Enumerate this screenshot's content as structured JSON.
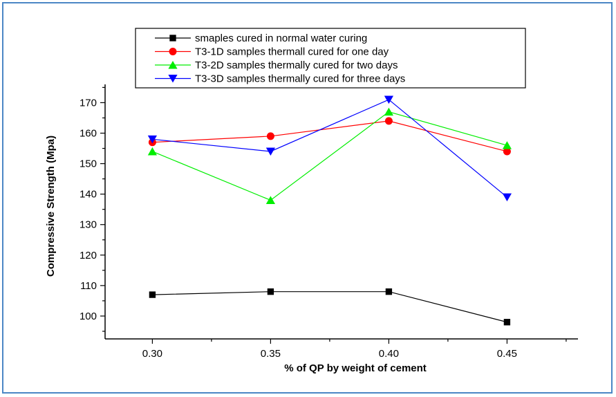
{
  "chart_data": {
    "type": "line",
    "title": "",
    "xlabel": "% of QP by weight of cement",
    "ylabel": "Compressive Strength (Mpa)",
    "x": [
      0.3,
      0.35,
      0.4,
      0.45
    ],
    "x_tick_labels": [
      "0.30",
      "0.35",
      "0.40",
      "0.45"
    ],
    "xlim": [
      0.28,
      0.48
    ],
    "ylim": [
      92.5,
      176
    ],
    "y_ticks": [
      100,
      110,
      120,
      130,
      140,
      150,
      160,
      170
    ],
    "y_tick_labels": [
      "100",
      "110",
      "120",
      "130",
      "140",
      "150",
      "160",
      "170"
    ],
    "grid": false,
    "legend_position": "top",
    "series": [
      {
        "name": "smaples cured in normal water curing",
        "values": [
          107,
          108,
          108,
          98
        ],
        "color": "#000000",
        "marker": "square"
      },
      {
        "name": "T3-1D samples thermall cured for one day",
        "values": [
          157,
          159,
          164,
          154
        ],
        "color": "#ff0000",
        "marker": "circle"
      },
      {
        "name": "T3-2D samples thermally cured for two days",
        "values": [
          154,
          138,
          167,
          156
        ],
        "color": "#00ee00",
        "marker": "triangle-up"
      },
      {
        "name": "T3-3D samples thermally cured for three days",
        "values": [
          158,
          154,
          171,
          139
        ],
        "color": "#0000ff",
        "marker": "triangle-down"
      }
    ]
  }
}
